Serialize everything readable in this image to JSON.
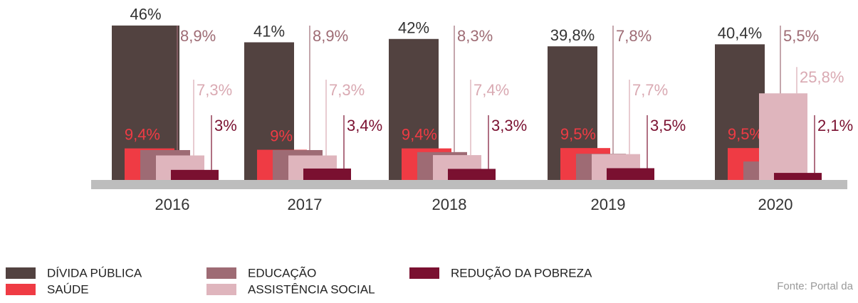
{
  "chart_data": {
    "type": "bar",
    "categories": [
      "2016",
      "2017",
      "2018",
      "2019",
      "2020"
    ],
    "series": [
      {
        "name": "DÍVIDA PÚBLICA",
        "color": "#524240",
        "values": [
          46,
          41,
          42,
          39.8,
          40.4
        ],
        "value_labels": [
          "46%",
          "41%",
          "42%",
          "39,8%",
          "40,4%"
        ]
      },
      {
        "name": "SAÚDE",
        "color": "#ef3b44",
        "values": [
          9.4,
          9,
          9.4,
          9.5,
          9.5
        ],
        "value_labels": [
          "9,4%",
          "9%",
          "9,4%",
          "9,5%",
          "9,5%"
        ]
      },
      {
        "name": "EDUCAÇÃO",
        "color": "#9e6b74",
        "values": [
          8.9,
          8.9,
          8.3,
          7.8,
          5.5
        ],
        "value_labels": [
          "8,9%",
          "8,9%",
          "8,3%",
          "7,8%",
          "5,5%"
        ]
      },
      {
        "name": "ASSISTÊNCIA SOCIAL",
        "color": "#dfb5bd",
        "values": [
          7.3,
          7.3,
          7.4,
          7.7,
          25.8
        ],
        "value_labels": [
          "7,3%",
          "7,3%",
          "7,4%",
          "7,7%",
          "25,8%"
        ]
      },
      {
        "name": "REDUÇÃO DA POBREZA",
        "color": "#7a1030",
        "values": [
          3,
          3.4,
          3.3,
          3.5,
          2.1
        ],
        "value_labels": [
          "3%",
          "3,4%",
          "3,3%",
          "3,5%",
          "2,1%"
        ]
      }
    ],
    "source": "Fonte: Portal da"
  }
}
